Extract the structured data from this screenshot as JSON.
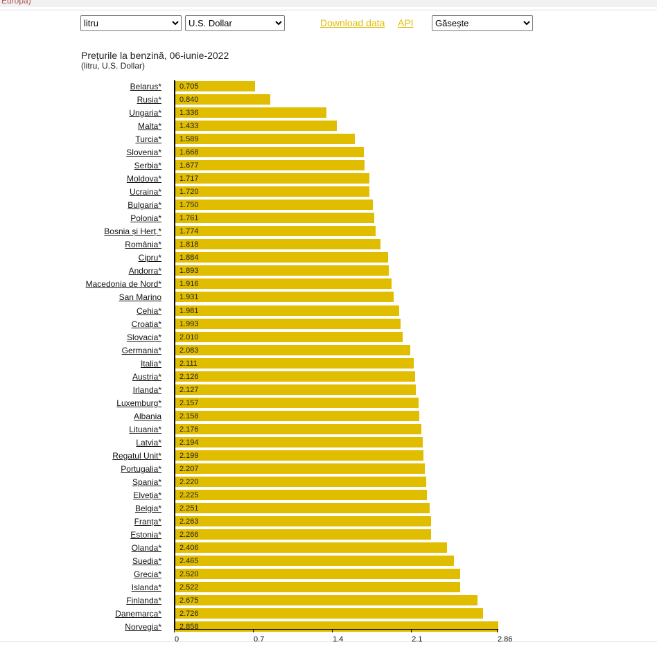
{
  "top_strip_text": "Europa)",
  "controls": {
    "unit": "litru",
    "currency": "U.S. Dollar",
    "download": "Download data",
    "api": "API",
    "find": "Găsește"
  },
  "chart_data": {
    "type": "bar",
    "title": "Prețurile la benzină, 06-iunie-2022",
    "subtitle": "(litru, U.S. Dollar)",
    "xlim": [
      0,
      2.86
    ],
    "xticks": [
      "0",
      "0.7",
      "1.4",
      "2.1",
      "2.86"
    ],
    "categories": [
      "Belarus*",
      "Rusia*",
      "Ungaria*",
      "Malta*",
      "Turcia*",
      "Slovenia*",
      "Serbia*",
      "Moldova*",
      "Ucraina*",
      "Bulgaria*",
      "Polonia*",
      "Bosnia și Herț.*",
      "România*",
      "Cipru*",
      "Andorra*",
      "Macedonia de Nord*",
      "San Marino ",
      "Cehia*",
      "Croația*",
      "Slovacia*",
      "Germania*",
      "Italia*",
      "Austria*",
      "Irlanda*",
      "Luxemburg*",
      "Albania ",
      "Lituania*",
      "Latvia*",
      "Regatul Unit*",
      "Portugalia*",
      "Spania*",
      "Elveția*",
      "Belgia*",
      "Franța*",
      "Estonia*",
      "Olanda*",
      "Suedia*",
      "Grecia*",
      "Islanda*",
      "Finlanda*",
      "Danemarca*",
      "Norvegia*"
    ],
    "values": [
      "0.705",
      "0.840",
      "1.336",
      "1.433",
      "1.589",
      "1.668",
      "1.677",
      "1.717",
      "1.720",
      "1.750",
      "1.761",
      "1.774",
      "1.818",
      "1.884",
      "1.893",
      "1.916",
      "1.931",
      "1.981",
      "1.993",
      "2.010",
      "2.083",
      "2.111",
      "2.126",
      "2.127",
      "2.157",
      "2.158",
      "2.176",
      "2.194",
      "2.199",
      "2.207",
      "2.220",
      "2.225",
      "2.251",
      "2.263",
      "2.266",
      "2.406",
      "2.465",
      "2.520",
      "2.522",
      "2.675",
      "2.726",
      "2.858"
    ]
  }
}
